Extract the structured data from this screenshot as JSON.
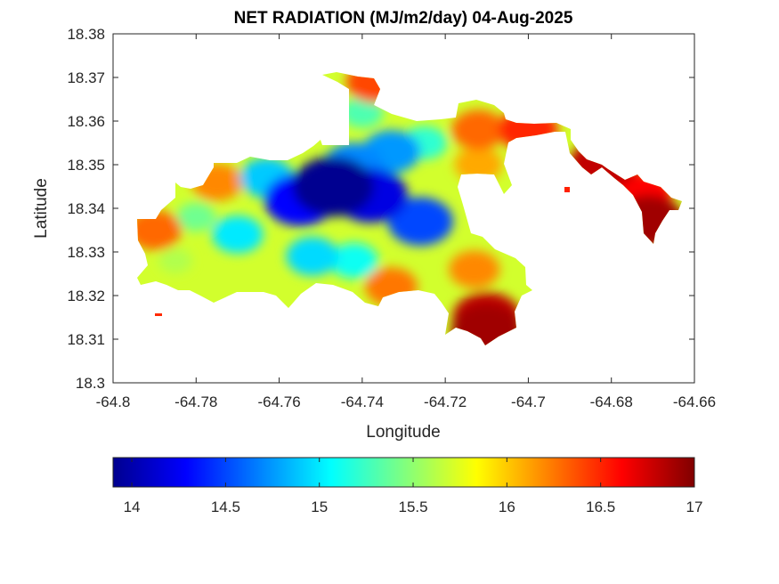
{
  "chart_data": {
    "type": "heatmap",
    "title": "NET RADIATION (MJ/m2/day) 04-Aug-2025",
    "xlabel": "Longitude",
    "ylabel": "Latitude",
    "xlim": [
      -64.8,
      -64.66
    ],
    "ylim": [
      18.3,
      18.38
    ],
    "x_ticks": [
      -64.8,
      -64.78,
      -64.76,
      -64.74,
      -64.72,
      -64.7,
      -64.68,
      -64.66
    ],
    "x_tick_labels": [
      "-64.8",
      "-64.78",
      "-64.76",
      "-64.74",
      "-64.72",
      "-64.7",
      "-64.68",
      "-64.66"
    ],
    "y_ticks": [
      18.3,
      18.31,
      18.32,
      18.33,
      18.34,
      18.35,
      18.36,
      18.37,
      18.38
    ],
    "y_tick_labels": [
      "18.3",
      "18.31",
      "18.32",
      "18.33",
      "18.34",
      "18.35",
      "18.36",
      "18.37",
      "18.38"
    ],
    "colormap": "jet",
    "colorbar": {
      "location": "bottom",
      "clim": [
        13.9,
        17
      ],
      "ticks": [
        14,
        14.5,
        15,
        15.5,
        16,
        16.5,
        17
      ],
      "tick_labels": [
        "14",
        "14.5",
        "15",
        "15.5",
        "16",
        "16.5",
        "17"
      ]
    },
    "grid": false,
    "hotspots": [
      {
        "lon": -64.747,
        "lat": 18.345,
        "value": 13.95
      },
      {
        "lon": -64.738,
        "lat": 18.343,
        "value": 14.2
      },
      {
        "lon": -64.755,
        "lat": 18.342,
        "value": 14.3
      },
      {
        "lon": -64.726,
        "lat": 18.337,
        "value": 14.5
      },
      {
        "lon": -64.742,
        "lat": 18.35,
        "value": 14.7
      },
      {
        "lon": -64.733,
        "lat": 18.353,
        "value": 14.75
      },
      {
        "lon": -64.763,
        "lat": 18.347,
        "value": 14.9
      },
      {
        "lon": -64.77,
        "lat": 18.334,
        "value": 15.0
      },
      {
        "lon": -64.752,
        "lat": 18.329,
        "value": 14.95
      },
      {
        "lon": -64.742,
        "lat": 18.328,
        "value": 15.1
      },
      {
        "lon": -64.725,
        "lat": 18.355,
        "value": 15.2
      },
      {
        "lon": -64.78,
        "lat": 18.338,
        "value": 15.4
      },
      {
        "lon": -64.785,
        "lat": 18.328,
        "value": 15.6
      },
      {
        "lon": -64.74,
        "lat": 18.362,
        "value": 15.3
      },
      {
        "lon": -64.79,
        "lat": 18.335,
        "value": 16.3
      },
      {
        "lon": -64.775,
        "lat": 18.346,
        "value": 16.2
      },
      {
        "lon": -64.737,
        "lat": 18.369,
        "value": 16.4
      },
      {
        "lon": -64.733,
        "lat": 18.322,
        "value": 16.25
      },
      {
        "lon": -64.713,
        "lat": 18.326,
        "value": 16.2
      },
      {
        "lon": -64.712,
        "lat": 18.358,
        "value": 16.3
      },
      {
        "lon": -64.712,
        "lat": 18.35,
        "value": 16.1
      },
      {
        "lon": -64.71,
        "lat": 18.315,
        "value": 16.8
      },
      {
        "lon": -64.71,
        "lat": 18.312,
        "value": 16.9
      },
      {
        "lon": -64.7,
        "lat": 18.358,
        "value": 16.5
      },
      {
        "lon": -64.682,
        "lat": 18.35,
        "value": 16.8
      },
      {
        "lon": -64.673,
        "lat": 18.343,
        "value": 16.6
      },
      {
        "lon": -64.671,
        "lat": 18.337,
        "value": 16.9
      }
    ]
  }
}
